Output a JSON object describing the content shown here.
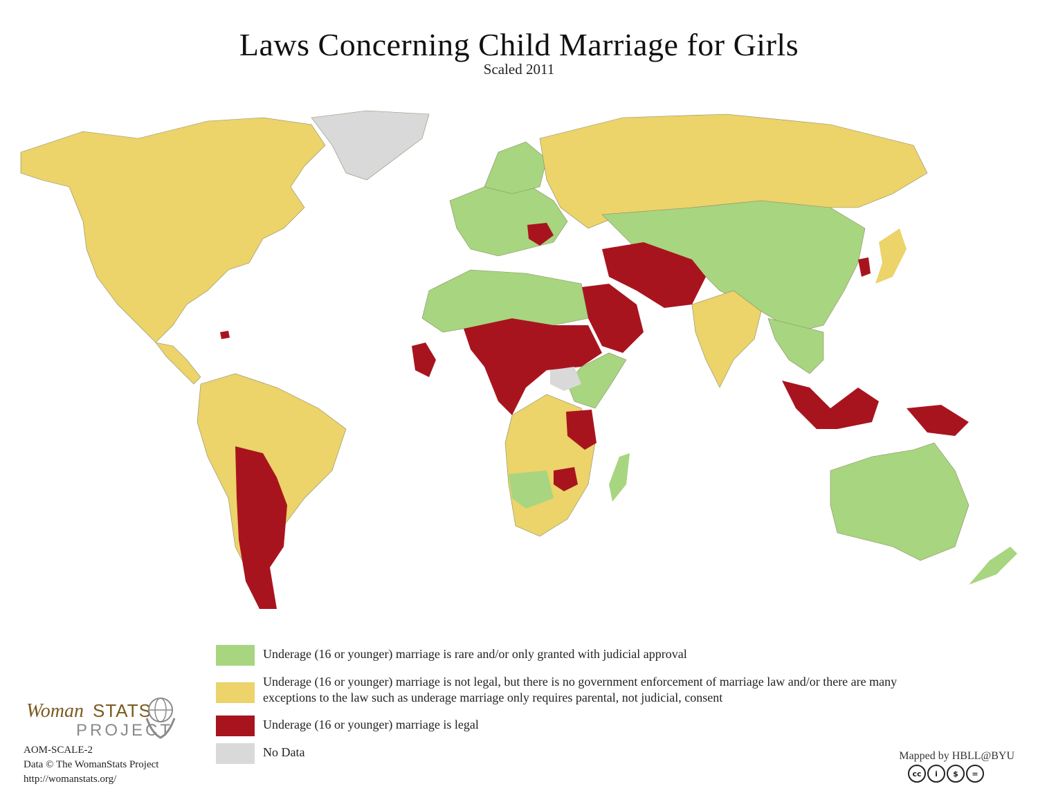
{
  "title": "Laws Concerning Child Marriage for Girls",
  "subtitle": "Scaled 2011",
  "colors": {
    "green": "#a8d57f",
    "yellow": "#ecd36a",
    "red": "#a8141e",
    "gray": "#d9d9d9",
    "border": "#8a8a6a"
  },
  "legend": [
    {
      "color": "#a8d57f",
      "label": "Underage (16 or younger) marriage is rare and/or only granted with judicial approval"
    },
    {
      "color": "#ecd36a",
      "label": "Underage (16 or younger) marriage is not legal, but there is no government enforcement of marriage law and/or there are many exceptions to the law such as underage marriage only requires parental, not judicial, consent"
    },
    {
      "color": "#a8141e",
      "label": "Underage (16 or younger) marriage is legal"
    },
    {
      "color": "#d9d9d9",
      "label": "No Data"
    }
  ],
  "logo": {
    "woman": "Woman",
    "stats": "STATS",
    "project": "PROJECT"
  },
  "footer_left": {
    "code": "AOM-SCALE-2",
    "data": "Data © The WomanStats Project",
    "url": "http://womanstats.org/"
  },
  "footer_right": {
    "mapped": "Mapped by HBLL@BYU"
  },
  "cc_icons": [
    "cc-icon",
    "by-icon",
    "nc-icon",
    "nd-icon"
  ]
}
